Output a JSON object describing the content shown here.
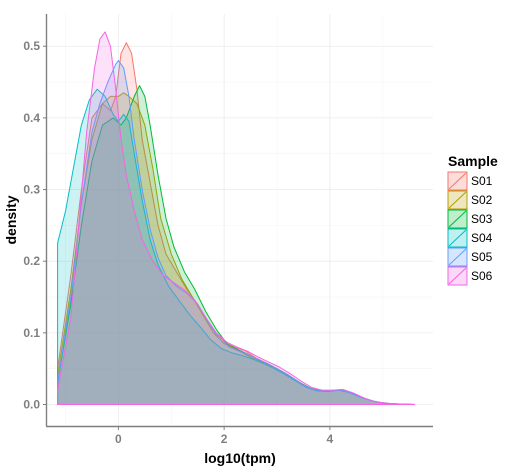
{
  "chart_data": {
    "type": "area",
    "xlabel": "log10(tpm)",
    "ylabel": "density",
    "xlim": [
      -1.35,
      5.95
    ],
    "ylim": [
      -0.03,
      0.545
    ],
    "xticks": [
      0,
      2,
      4
    ],
    "xtick_labels": [
      "0",
      "2",
      "4"
    ],
    "yticks": [
      0.0,
      0.1,
      0.2,
      0.3,
      0.4,
      0.5
    ],
    "ytick_labels": [
      "0.0",
      "0.1",
      "0.2",
      "0.3",
      "0.4",
      "0.5"
    ],
    "grid": true,
    "legend": {
      "title": "Sample",
      "position": "right"
    },
    "series": [
      {
        "name": "S01",
        "color": "#F8766D",
        "points": [
          [
            -1.15,
            0.0
          ],
          [
            -1.15,
            0.05
          ],
          [
            -0.9,
            0.18
          ],
          [
            -0.7,
            0.3
          ],
          [
            -0.5,
            0.4
          ],
          [
            -0.3,
            0.42
          ],
          [
            -0.15,
            0.41
          ],
          [
            -0.05,
            0.43
          ],
          [
            0.05,
            0.49
          ],
          [
            0.15,
            0.505
          ],
          [
            0.25,
            0.49
          ],
          [
            0.35,
            0.44
          ],
          [
            0.45,
            0.37
          ],
          [
            0.6,
            0.31
          ],
          [
            0.75,
            0.25
          ],
          [
            0.9,
            0.21
          ],
          [
            1.1,
            0.185
          ],
          [
            1.3,
            0.16
          ],
          [
            1.5,
            0.14
          ],
          [
            1.7,
            0.115
          ],
          [
            1.9,
            0.095
          ],
          [
            2.05,
            0.085
          ],
          [
            2.2,
            0.08
          ],
          [
            2.4,
            0.075
          ],
          [
            2.6,
            0.065
          ],
          [
            2.8,
            0.058
          ],
          [
            3.0,
            0.05
          ],
          [
            3.2,
            0.042
          ],
          [
            3.4,
            0.032
          ],
          [
            3.6,
            0.023
          ],
          [
            3.8,
            0.02
          ],
          [
            4.0,
            0.019
          ],
          [
            4.2,
            0.021
          ],
          [
            4.4,
            0.017
          ],
          [
            4.6,
            0.01
          ],
          [
            4.8,
            0.005
          ],
          [
            5.0,
            0.002
          ],
          [
            5.3,
            0.0005
          ],
          [
            5.6,
            0.0
          ]
        ]
      },
      {
        "name": "S02",
        "color": "#B79F00",
        "points": [
          [
            -1.15,
            0.0
          ],
          [
            -1.15,
            0.04
          ],
          [
            -0.9,
            0.16
          ],
          [
            -0.7,
            0.28
          ],
          [
            -0.5,
            0.37
          ],
          [
            -0.3,
            0.42
          ],
          [
            -0.15,
            0.43
          ],
          [
            0.0,
            0.43
          ],
          [
            0.1,
            0.435
          ],
          [
            0.2,
            0.43
          ],
          [
            0.35,
            0.42
          ],
          [
            0.5,
            0.39
          ],
          [
            0.65,
            0.33
          ],
          [
            0.8,
            0.26
          ],
          [
            1.0,
            0.21
          ],
          [
            1.2,
            0.175
          ],
          [
            1.4,
            0.15
          ],
          [
            1.6,
            0.125
          ],
          [
            1.8,
            0.1
          ],
          [
            2.0,
            0.085
          ],
          [
            2.2,
            0.078
          ],
          [
            2.4,
            0.07
          ],
          [
            2.6,
            0.062
          ],
          [
            2.8,
            0.056
          ],
          [
            3.0,
            0.049
          ],
          [
            3.2,
            0.04
          ],
          [
            3.4,
            0.031
          ],
          [
            3.6,
            0.023
          ],
          [
            3.8,
            0.02
          ],
          [
            4.0,
            0.019
          ],
          [
            4.2,
            0.02
          ],
          [
            4.4,
            0.016
          ],
          [
            4.6,
            0.01
          ],
          [
            4.8,
            0.005
          ],
          [
            5.0,
            0.002
          ],
          [
            5.3,
            0.0005
          ],
          [
            5.6,
            0.0
          ]
        ]
      },
      {
        "name": "S03",
        "color": "#00BA38",
        "points": [
          [
            -1.15,
            0.0
          ],
          [
            -1.15,
            0.03
          ],
          [
            -0.9,
            0.14
          ],
          [
            -0.7,
            0.25
          ],
          [
            -0.5,
            0.34
          ],
          [
            -0.3,
            0.39
          ],
          [
            -0.1,
            0.4
          ],
          [
            0.05,
            0.39
          ],
          [
            0.15,
            0.4
          ],
          [
            0.3,
            0.43
          ],
          [
            0.4,
            0.445
          ],
          [
            0.5,
            0.43
          ],
          [
            0.6,
            0.39
          ],
          [
            0.75,
            0.32
          ],
          [
            0.9,
            0.26
          ],
          [
            1.05,
            0.22
          ],
          [
            1.25,
            0.185
          ],
          [
            1.45,
            0.16
          ],
          [
            1.65,
            0.13
          ],
          [
            1.85,
            0.105
          ],
          [
            2.05,
            0.085
          ],
          [
            2.25,
            0.077
          ],
          [
            2.45,
            0.07
          ],
          [
            2.65,
            0.062
          ],
          [
            2.85,
            0.056
          ],
          [
            3.05,
            0.048
          ],
          [
            3.25,
            0.039
          ],
          [
            3.45,
            0.03
          ],
          [
            3.65,
            0.022
          ],
          [
            3.85,
            0.019
          ],
          [
            4.05,
            0.019
          ],
          [
            4.25,
            0.02
          ],
          [
            4.45,
            0.015
          ],
          [
            4.65,
            0.009
          ],
          [
            4.85,
            0.004
          ],
          [
            5.1,
            0.0015
          ],
          [
            5.4,
            0.0003
          ],
          [
            5.6,
            0.0
          ]
        ]
      },
      {
        "name": "S04",
        "color": "#00BFC4",
        "points": [
          [
            -1.15,
            0.0
          ],
          [
            -1.15,
            0.225
          ],
          [
            -1.0,
            0.27
          ],
          [
            -0.85,
            0.33
          ],
          [
            -0.7,
            0.39
          ],
          [
            -0.55,
            0.425
          ],
          [
            -0.4,
            0.44
          ],
          [
            -0.25,
            0.43
          ],
          [
            -0.1,
            0.405
          ],
          [
            0.0,
            0.395
          ],
          [
            0.1,
            0.405
          ],
          [
            0.2,
            0.395
          ],
          [
            0.3,
            0.35
          ],
          [
            0.45,
            0.285
          ],
          [
            0.6,
            0.23
          ],
          [
            0.75,
            0.195
          ],
          [
            0.95,
            0.165
          ],
          [
            1.15,
            0.145
          ],
          [
            1.35,
            0.125
          ],
          [
            1.55,
            0.108
          ],
          [
            1.75,
            0.09
          ],
          [
            1.95,
            0.078
          ],
          [
            2.15,
            0.072
          ],
          [
            2.35,
            0.068
          ],
          [
            2.55,
            0.063
          ],
          [
            2.75,
            0.057
          ],
          [
            2.95,
            0.05
          ],
          [
            3.15,
            0.042
          ],
          [
            3.35,
            0.033
          ],
          [
            3.55,
            0.024
          ],
          [
            3.75,
            0.019
          ],
          [
            3.95,
            0.018
          ],
          [
            4.15,
            0.02
          ],
          [
            4.35,
            0.017
          ],
          [
            4.55,
            0.011
          ],
          [
            4.75,
            0.006
          ],
          [
            5.0,
            0.002
          ],
          [
            5.3,
            0.0005
          ],
          [
            5.6,
            0.0
          ]
        ]
      },
      {
        "name": "S05",
        "color": "#619CFF",
        "points": [
          [
            -1.15,
            0.0
          ],
          [
            -1.15,
            0.03
          ],
          [
            -0.9,
            0.15
          ],
          [
            -0.7,
            0.28
          ],
          [
            -0.5,
            0.38
          ],
          [
            -0.35,
            0.42
          ],
          [
            -0.2,
            0.45
          ],
          [
            -0.05,
            0.475
          ],
          [
            0.0,
            0.48
          ],
          [
            0.1,
            0.47
          ],
          [
            0.2,
            0.43
          ],
          [
            0.3,
            0.37
          ],
          [
            0.45,
            0.3
          ],
          [
            0.6,
            0.245
          ],
          [
            0.75,
            0.205
          ],
          [
            0.9,
            0.18
          ],
          [
            1.1,
            0.165
          ],
          [
            1.3,
            0.155
          ],
          [
            1.5,
            0.14
          ],
          [
            1.7,
            0.115
          ],
          [
            1.9,
            0.092
          ],
          [
            2.1,
            0.08
          ],
          [
            2.3,
            0.074
          ],
          [
            2.5,
            0.068
          ],
          [
            2.7,
            0.061
          ],
          [
            2.9,
            0.054
          ],
          [
            3.1,
            0.046
          ],
          [
            3.3,
            0.037
          ],
          [
            3.5,
            0.027
          ],
          [
            3.7,
            0.021
          ],
          [
            3.9,
            0.019
          ],
          [
            4.1,
            0.02
          ],
          [
            4.3,
            0.019
          ],
          [
            4.5,
            0.013
          ],
          [
            4.7,
            0.007
          ],
          [
            4.9,
            0.003
          ],
          [
            5.2,
            0.001
          ],
          [
            5.6,
            0.0
          ]
        ]
      },
      {
        "name": "S06",
        "color": "#F564E3",
        "points": [
          [
            -1.15,
            0.0
          ],
          [
            -1.15,
            0.02
          ],
          [
            -0.9,
            0.12
          ],
          [
            -0.75,
            0.25
          ],
          [
            -0.6,
            0.38
          ],
          [
            -0.45,
            0.47
          ],
          [
            -0.35,
            0.51
          ],
          [
            -0.25,
            0.52
          ],
          [
            -0.15,
            0.5
          ],
          [
            -0.05,
            0.44
          ],
          [
            0.05,
            0.37
          ],
          [
            0.15,
            0.32
          ],
          [
            0.3,
            0.27
          ],
          [
            0.45,
            0.23
          ],
          [
            0.65,
            0.2
          ],
          [
            0.85,
            0.18
          ],
          [
            1.05,
            0.17
          ],
          [
            1.25,
            0.16
          ],
          [
            1.45,
            0.145
          ],
          [
            1.65,
            0.122
          ],
          [
            1.85,
            0.1
          ],
          [
            2.05,
            0.087
          ],
          [
            2.25,
            0.08
          ],
          [
            2.45,
            0.074
          ],
          [
            2.65,
            0.066
          ],
          [
            2.85,
            0.059
          ],
          [
            3.05,
            0.052
          ],
          [
            3.25,
            0.043
          ],
          [
            3.45,
            0.033
          ],
          [
            3.65,
            0.024
          ],
          [
            3.85,
            0.02
          ],
          [
            4.05,
            0.02
          ],
          [
            4.25,
            0.021
          ],
          [
            4.45,
            0.016
          ],
          [
            4.65,
            0.009
          ],
          [
            4.85,
            0.004
          ],
          [
            5.1,
            0.0015
          ],
          [
            5.4,
            0.0003
          ],
          [
            5.6,
            0.0
          ]
        ]
      }
    ]
  }
}
